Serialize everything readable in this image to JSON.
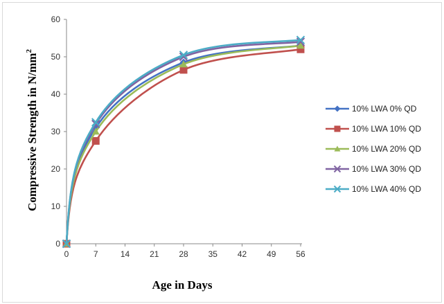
{
  "chart_data": {
    "type": "line",
    "xlabel": "Age in Days",
    "ylabel": "Compressive Strength in N/mm",
    "ylabel_superscript": "2",
    "x_ticks": [
      "0",
      "7",
      "14",
      "21",
      "28",
      "35",
      "42",
      "49",
      "56"
    ],
    "y_ticks": [
      "0",
      "10",
      "20",
      "30",
      "40",
      "50",
      "60"
    ],
    "xlim": [
      0,
      56
    ],
    "ylim": [
      0,
      60
    ],
    "grid": false,
    "legend_position": "right",
    "x": [
      0,
      7,
      28,
      56
    ],
    "series": [
      {
        "name": "10% LWA 0% QD",
        "values": [
          0,
          31,
          48.5,
          53
        ],
        "color": "#4472c4",
        "marker": "diamond"
      },
      {
        "name": "10% LWA 10% QD",
        "values": [
          0,
          27.5,
          46.5,
          52
        ],
        "color": "#c0504d",
        "marker": "square"
      },
      {
        "name": "10% LWA 20% QD",
        "values": [
          0,
          30,
          48,
          53
        ],
        "color": "#9bbb59",
        "marker": "triangle"
      },
      {
        "name": "10% LWA 30% QD",
        "values": [
          0,
          32,
          50,
          54
        ],
        "color": "#8064a2",
        "marker": "x"
      },
      {
        "name": "10% LWA 40% QD",
        "values": [
          0,
          32.5,
          50.5,
          54.5
        ],
        "color": "#4bacc6",
        "marker": "x"
      }
    ]
  }
}
